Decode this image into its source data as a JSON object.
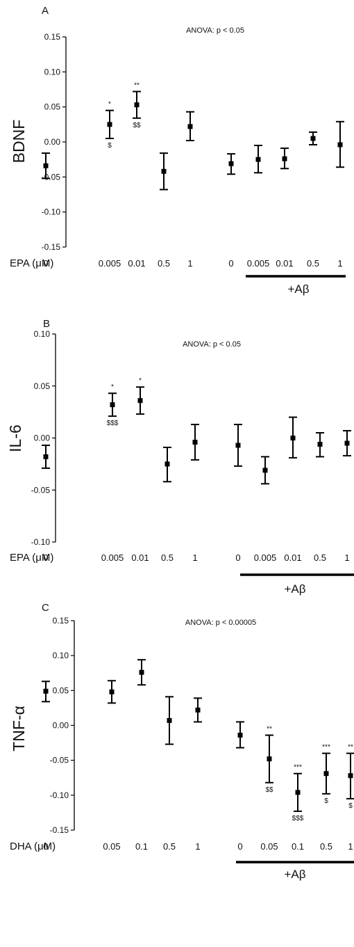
{
  "chart_data": [
    {
      "type": "scatter",
      "panel_label": "A",
      "annotation": "ANOVA: p < 0.05",
      "ylabel": "BDNF",
      "x_axis_label": "EPA (μM)",
      "group_label": "+Aβ",
      "ylim": [
        -0.15,
        0.15
      ],
      "yticks": [
        "0.15",
        "0.10",
        "0.05",
        "0.00",
        "-0.05",
        "-0.10",
        "-0.15"
      ],
      "tick_values": [
        0.15,
        0.1,
        0.05,
        0.0,
        -0.05,
        -0.1,
        -0.15
      ],
      "categories": [
        "0",
        "0.005",
        "0.01",
        "0.5",
        "1",
        "0",
        "0.005",
        "0.01",
        "0.5",
        "1"
      ],
      "values": [
        -0.034,
        0.025,
        0.053,
        -0.042,
        0.022,
        -0.031,
        -0.025,
        -0.024,
        0.005,
        -0.004
      ],
      "error_low": [
        -0.052,
        0.005,
        0.034,
        -0.068,
        0.002,
        -0.046,
        -0.044,
        -0.038,
        -0.004,
        -0.036
      ],
      "error_high": [
        -0.016,
        0.045,
        0.072,
        -0.016,
        0.043,
        -0.017,
        -0.005,
        -0.009,
        0.014,
        0.029
      ],
      "sig_above": [
        "",
        "*",
        "**",
        "",
        "",
        "",
        "",
        "",
        "",
        ""
      ],
      "sig_below": [
        "",
        "$",
        "$$",
        "",
        "",
        "",
        "",
        "",
        "",
        ""
      ]
    },
    {
      "type": "scatter",
      "panel_label": "B",
      "annotation": "ANOVA: p < 0.05",
      "ylabel": "IL-6",
      "x_axis_label": "EPA (μM)",
      "group_label": "+Aβ",
      "ylim": [
        -0.1,
        0.1
      ],
      "yticks": [
        "0.10",
        "0.05",
        "0.00",
        "-0.05",
        "-0.10"
      ],
      "tick_values": [
        0.1,
        0.05,
        0.0,
        -0.05,
        -0.1
      ],
      "categories": [
        "0",
        "0.005",
        "0.01",
        "0.5",
        "1",
        "0",
        "0.005",
        "0.01",
        "0.5",
        "1"
      ],
      "values": [
        -0.018,
        0.032,
        0.036,
        -0.025,
        -0.004,
        -0.007,
        -0.031,
        0.0,
        -0.006,
        -0.005
      ],
      "error_low": [
        -0.029,
        0.021,
        0.023,
        -0.042,
        -0.021,
        -0.027,
        -0.044,
        -0.019,
        -0.018,
        -0.017
      ],
      "error_high": [
        -0.007,
        0.043,
        0.049,
        -0.009,
        0.013,
        0.013,
        -0.018,
        0.02,
        0.005,
        0.007
      ],
      "sig_above": [
        "",
        "*",
        "*",
        "",
        "",
        "",
        "",
        "",
        "",
        ""
      ],
      "sig_below": [
        "",
        "$$$",
        "",
        "",
        "",
        "",
        "",
        "",
        "",
        ""
      ]
    },
    {
      "type": "scatter",
      "panel_label": "C",
      "annotation": "ANOVA: p < 0.00005",
      "ylabel": "TNF-α",
      "x_axis_label": "DHA (μM)",
      "group_label": "+Aβ",
      "ylim": [
        -0.15,
        0.15
      ],
      "yticks": [
        "0.15",
        "0.10",
        "0.05",
        "0.00",
        "-0.05",
        "-0.10",
        "-0.15"
      ],
      "tick_values": [
        0.15,
        0.1,
        0.05,
        0.0,
        -0.05,
        -0.1,
        -0.15
      ],
      "categories": [
        "0",
        "0.05",
        "0.1",
        "0.5",
        "1",
        "0",
        "0.05",
        "0.1",
        "0.5",
        "1"
      ],
      "values": [
        0.049,
        0.048,
        0.076,
        0.007,
        0.022,
        -0.014,
        -0.048,
        -0.096,
        -0.069,
        -0.072
      ],
      "error_low": [
        0.034,
        0.032,
        0.058,
        -0.027,
        0.005,
        -0.032,
        -0.082,
        -0.123,
        -0.098,
        -0.105
      ],
      "error_high": [
        0.063,
        0.064,
        0.094,
        0.041,
        0.039,
        0.005,
        -0.014,
        -0.069,
        -0.04,
        -0.04
      ],
      "sig_above": [
        "",
        "",
        "",
        "",
        "",
        "",
        "**",
        "***",
        "***",
        "**"
      ],
      "sig_below": [
        "",
        "",
        "",
        "",
        "",
        "",
        "$$",
        "$$$",
        "$",
        "$"
      ]
    }
  ]
}
